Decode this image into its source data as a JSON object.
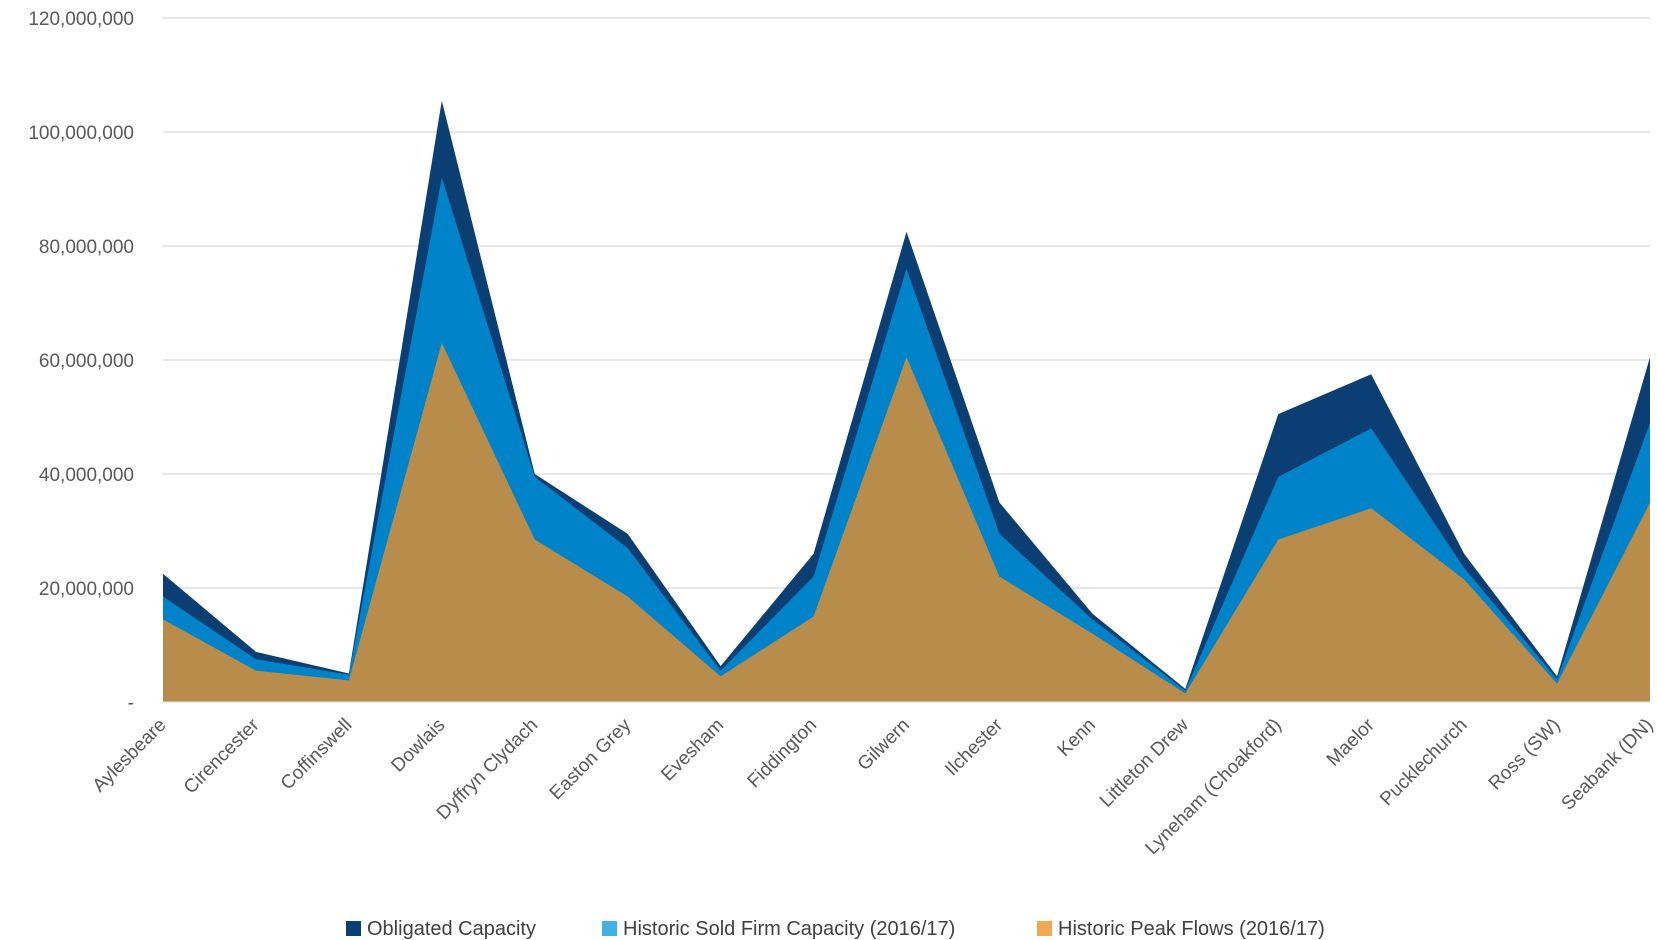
{
  "chart_data": {
    "type": "area",
    "stacked": false,
    "categories": [
      "Aylesbeare",
      "Cirencester",
      "Coffinswell",
      "Dowlais",
      "Dyffryn Clydach",
      "Easton Grey",
      "Evesham",
      "Fiddington",
      "Gilwern",
      "Ilchester",
      "Kenn",
      "Littleton Drew",
      "Lyneham (Choakford)",
      "Maelor",
      "Pucklechurch",
      "Ross (SW)",
      "Seabank (DN)"
    ],
    "series": [
      {
        "name": "Obligated Capacity",
        "color": "#0B3F73",
        "values": [
          22500000,
          8800000,
          5000000,
          105500000,
          40000000,
          29500000,
          6300000,
          26000000,
          82500000,
          35000000,
          15500000,
          2300000,
          50500000,
          57500000,
          26000000,
          4500000,
          60500000
        ]
      },
      {
        "name": "Historic Sold Firm Capacity (2016/17)",
        "color": "#0083C9",
        "values": [
          18500000,
          7500000,
          4800000,
          92000000,
          39500000,
          27000000,
          5500000,
          22000000,
          76000000,
          29500000,
          14500000,
          2000000,
          39500000,
          48000000,
          23500000,
          4000000,
          49000000
        ]
      },
      {
        "name": "Historic Peak Flows (2016/17)",
        "color": "#B88C4A",
        "values": [
          14500000,
          5500000,
          3800000,
          63000000,
          28500000,
          18500000,
          4500000,
          15000000,
          60500000,
          22000000,
          12000000,
          1500000,
          28500000,
          34000000,
          21500000,
          3200000,
          35000000
        ]
      }
    ],
    "yticks": [
      "-",
      "20,000,000",
      "40,000,000",
      "60,000,000",
      "80,000,000",
      "100,000,000",
      "120,000,000"
    ],
    "ylim": [
      0,
      120000000
    ],
    "grid": true,
    "legend_position": "bottom",
    "legend_swatch_colors": [
      "#0B3F73",
      "#41B0E4",
      "#F3A854"
    ],
    "title": "",
    "xlabel": "",
    "ylabel": ""
  }
}
